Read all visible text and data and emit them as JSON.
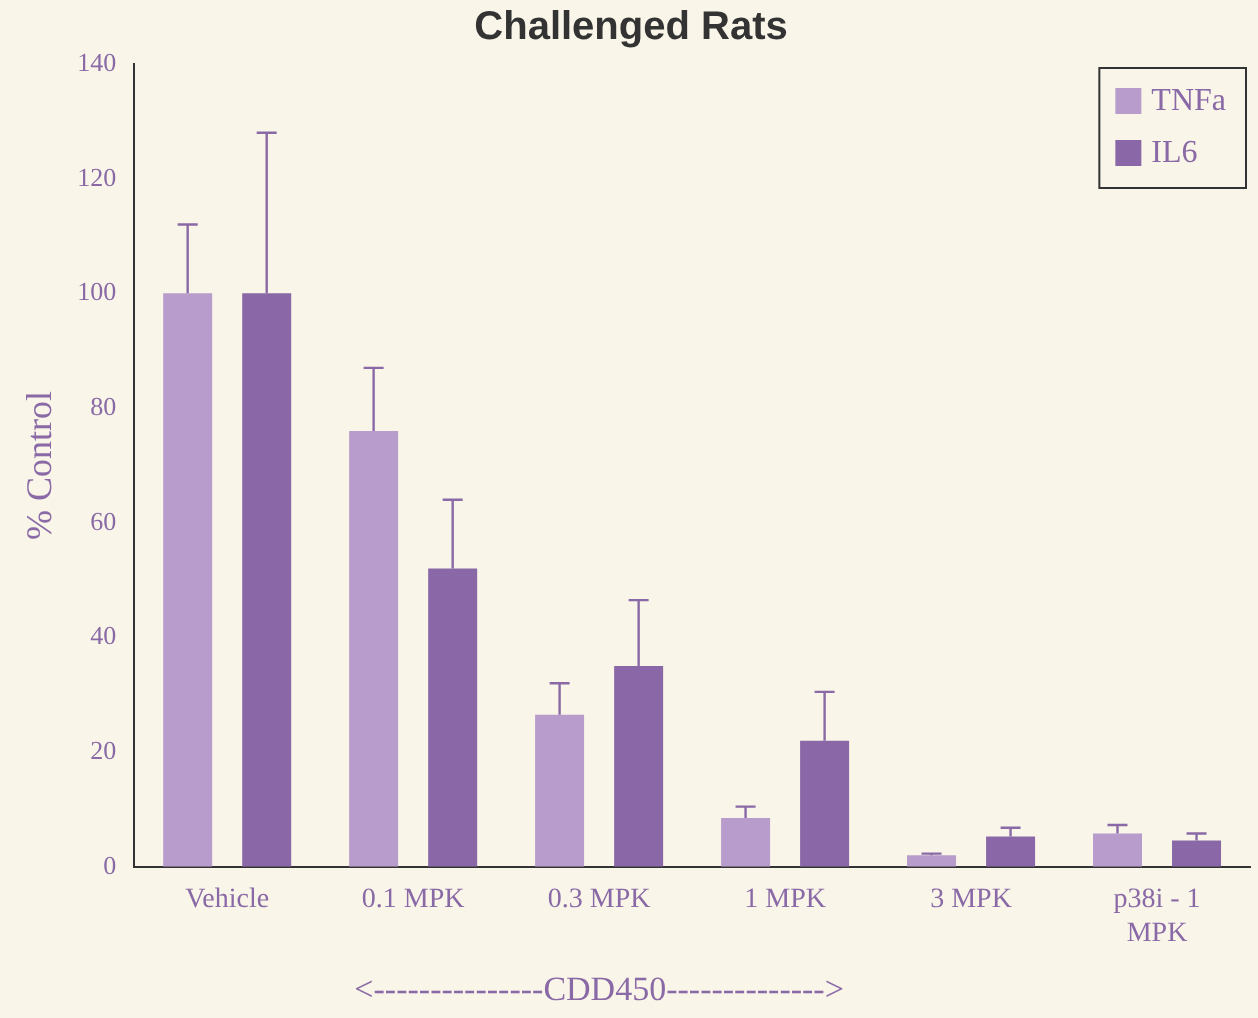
{
  "chart_data": {
    "type": "bar",
    "title": "Challenged Rats",
    "ylabel": "% Control",
    "categories": [
      "Vehicle",
      "0.1 MPK",
      "0.3 MPK",
      "1 MPK",
      "3 MPK",
      "p38i - 1 MPK"
    ],
    "series": [
      {
        "name": "TNFa",
        "color": "#b89ccb",
        "values": [
          100,
          76,
          26.5,
          8.5,
          2,
          5.8
        ],
        "errors": [
          12,
          11,
          5.5,
          2,
          0.3,
          1.5
        ]
      },
      {
        "name": "IL6",
        "color": "#8a68a8",
        "values": [
          100,
          52,
          35,
          22,
          5.3,
          4.6
        ],
        "errors": [
          28,
          12,
          11.5,
          8.5,
          1.5,
          1.2
        ]
      }
    ],
    "ylim": [
      0,
      140
    ],
    "yticks": [
      0,
      20,
      40,
      60,
      80,
      100,
      120,
      140
    ],
    "grid": false,
    "legend": "top right",
    "annotations": [
      "<---------------CDD450-------------->"
    ]
  }
}
